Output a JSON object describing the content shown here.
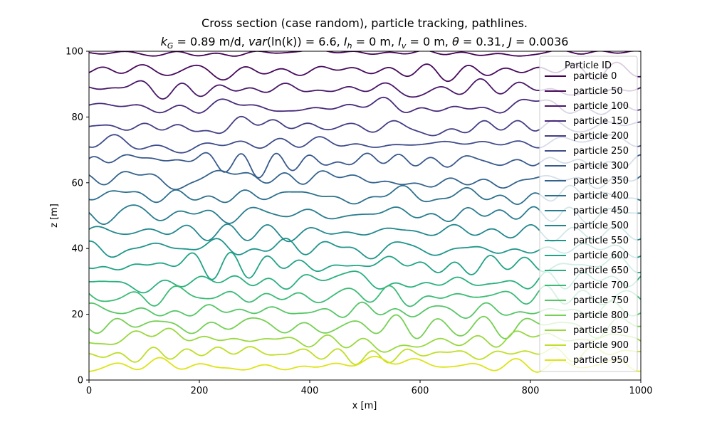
{
  "chart_data": {
    "type": "line",
    "title": "Cross section (case random), particle tracking, pathlines.",
    "subtitle": "k_G = 0.89 m/d, var(ln(k)) = 6.6, I_h = 0 m, I_v = 0 m, θ = 0.31, J = 0.0036",
    "subtitle_parts": {
      "kG_sym": "k",
      "kG_sub": "G",
      "kG_val": " = 0.89 m/d, ",
      "var_sym": "var",
      "var_val": "(ln(k)) = 6.6, ",
      "Ih_sym": "I",
      "Ih_sub": "h",
      "Ih_val": " = 0 m, ",
      "Iv_sym": "I",
      "Iv_sub": "v",
      "Iv_val": " = 0 m, ",
      "theta_sym": "θ",
      "theta_val": " = 0.31, ",
      "J_sym": "J",
      "J_val": " = 0.0036"
    },
    "xlabel": "x [m]",
    "ylabel": "z [m]",
    "xlim": [
      0,
      1000
    ],
    "ylim": [
      0,
      100
    ],
    "xticks": [
      0,
      200,
      400,
      600,
      800,
      1000
    ],
    "yticks": [
      0,
      20,
      40,
      60,
      80,
      100
    ],
    "grid": false,
    "legend": {
      "title": "Particle ID",
      "placement": "top-right"
    },
    "colormap": "viridis",
    "series": [
      {
        "name": "particle 0",
        "mean_z": 99.5,
        "amplitude": 1.0,
        "color": "#440154"
      },
      {
        "name": "particle 50",
        "mean_z": 94.0,
        "amplitude": 2.5,
        "color": "#46085c"
      },
      {
        "name": "particle 100",
        "mean_z": 88.5,
        "amplitude": 2.5,
        "color": "#481769"
      },
      {
        "name": "particle 150",
        "mean_z": 83.0,
        "amplitude": 2.5,
        "color": "#472a7a"
      },
      {
        "name": "particle 200",
        "mean_z": 77.0,
        "amplitude": 2.8,
        "color": "#433e85"
      },
      {
        "name": "particle 250",
        "mean_z": 72.0,
        "amplitude": 2.8,
        "color": "#3e4c8a"
      },
      {
        "name": "particle 300",
        "mean_z": 66.5,
        "amplitude": 2.8,
        "color": "#38598c"
      },
      {
        "name": "particle 350",
        "mean_z": 61.0,
        "amplitude": 2.8,
        "color": "#33638d"
      },
      {
        "name": "particle 400",
        "mean_z": 56.0,
        "amplitude": 2.8,
        "color": "#2d708e"
      },
      {
        "name": "particle 450",
        "mean_z": 50.5,
        "amplitude": 2.8,
        "color": "#287c8e"
      },
      {
        "name": "particle 500",
        "mean_z": 45.0,
        "amplitude": 2.8,
        "color": "#23888e"
      },
      {
        "name": "particle 550",
        "mean_z": 40.0,
        "amplitude": 2.8,
        "color": "#1f958b"
      },
      {
        "name": "particle 600",
        "mean_z": 35.0,
        "amplitude": 2.8,
        "color": "#20a386"
      },
      {
        "name": "particle 650",
        "mean_z": 30.0,
        "amplitude": 2.8,
        "color": "#2ab07f"
      },
      {
        "name": "particle 700",
        "mean_z": 25.5,
        "amplitude": 2.8,
        "color": "#3bbb75"
      },
      {
        "name": "particle 750",
        "mean_z": 21.0,
        "amplitude": 2.8,
        "color": "#56c667"
      },
      {
        "name": "particle 800",
        "mean_z": 16.5,
        "amplitude": 2.8,
        "color": "#75d054"
      },
      {
        "name": "particle 850",
        "mean_z": 12.0,
        "amplitude": 2.8,
        "color": "#98d83e"
      },
      {
        "name": "particle 900",
        "mean_z": 8.0,
        "amplitude": 2.5,
        "color": "#bddf26"
      },
      {
        "name": "particle 950",
        "mean_z": 4.5,
        "amplitude": 2.2,
        "color": "#dde318"
      }
    ]
  }
}
